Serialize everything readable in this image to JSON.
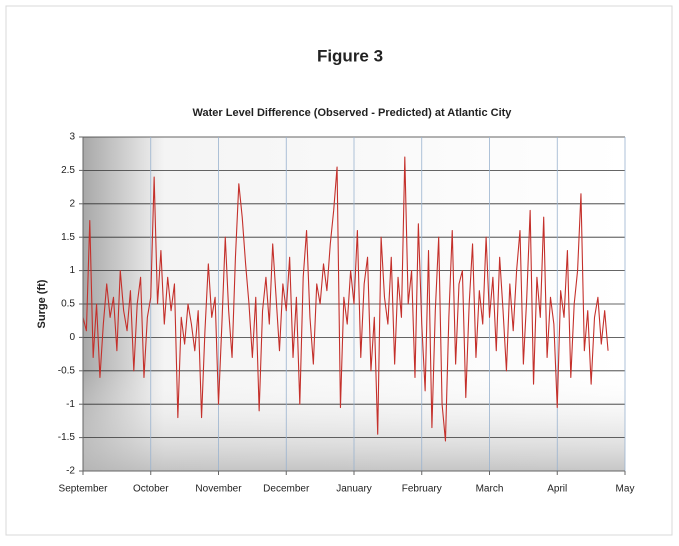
{
  "chart_data": {
    "type": "line",
    "heading": "Figure 3",
    "title": "Water Level Difference (Observed - Predicted) at Atlantic City",
    "y_label": "Surge (ft)",
    "grid": true,
    "xlim": [
      0,
      8
    ],
    "ylim": [
      -2,
      3
    ],
    "xticks": [
      {
        "value": 0,
        "label": "September"
      },
      {
        "value": 1,
        "label": "October"
      },
      {
        "value": 2,
        "label": "November"
      },
      {
        "value": 3,
        "label": "December"
      },
      {
        "value": 4,
        "label": "January"
      },
      {
        "value": 5,
        "label": "February"
      },
      {
        "value": 6,
        "label": "March"
      },
      {
        "value": 7,
        "label": "April"
      },
      {
        "value": 8,
        "label": "May"
      }
    ],
    "yticks": [
      -2,
      -1.5,
      -1,
      -0.5,
      0,
      0.5,
      1,
      1.5,
      2,
      2.5,
      3
    ],
    "x": [
      0,
      0.05,
      0.1,
      0.15,
      0.2,
      0.25,
      0.3,
      0.35,
      0.4,
      0.45,
      0.5,
      0.55,
      0.6,
      0.65,
      0.7,
      0.75,
      0.8,
      0.85,
      0.9,
      0.95,
      1,
      1.05,
      1.1,
      1.15,
      1.2,
      1.25,
      1.3,
      1.35,
      1.4,
      1.45,
      1.5,
      1.55,
      1.6,
      1.65,
      1.7,
      1.75,
      1.8,
      1.85,
      1.9,
      1.95,
      2,
      2.05,
      2.1,
      2.15,
      2.2,
      2.25,
      2.3,
      2.35,
      2.4,
      2.45,
      2.5,
      2.55,
      2.6,
      2.65,
      2.7,
      2.75,
      2.8,
      2.85,
      2.9,
      2.95,
      3,
      3.05,
      3.1,
      3.15,
      3.2,
      3.25,
      3.3,
      3.35,
      3.4,
      3.45,
      3.5,
      3.55,
      3.6,
      3.65,
      3.7,
      3.75,
      3.8,
      3.85,
      3.9,
      3.95,
      4,
      4.05,
      4.1,
      4.15,
      4.2,
      4.25,
      4.3,
      4.35,
      4.4,
      4.45,
      4.5,
      4.55,
      4.6,
      4.65,
      4.7,
      4.75,
      4.8,
      4.85,
      4.9,
      4.95,
      5,
      5.05,
      5.1,
      5.15,
      5.2,
      5.25,
      5.3,
      5.35,
      5.4,
      5.45,
      5.5,
      5.55,
      5.6,
      5.65,
      5.7,
      5.75,
      5.8,
      5.85,
      5.9,
      5.95,
      6,
      6.05,
      6.1,
      6.15,
      6.2,
      6.25,
      6.3,
      6.35,
      6.4,
      6.45,
      6.5,
      6.55,
      6.6,
      6.65,
      6.7,
      6.75,
      6.8,
      6.85,
      6.9,
      6.95,
      7,
      7.05,
      7.1,
      7.15,
      7.2,
      7.25,
      7.3,
      7.35,
      7.4,
      7.45,
      7.5,
      7.55,
      7.6,
      7.65,
      7.7,
      7.75
    ],
    "series": [
      {
        "name": "Surge",
        "color": "#c4302b",
        "values": [
          0.3,
          0.1,
          1.75,
          -0.3,
          0.5,
          -0.6,
          0.2,
          0.8,
          0.3,
          0.6,
          -0.2,
          1.0,
          0.4,
          0.1,
          0.7,
          -0.5,
          0.5,
          0.9,
          -0.6,
          0.3,
          0.6,
          2.4,
          0.5,
          1.3,
          0.2,
          0.9,
          0.4,
          0.8,
          -1.2,
          0.3,
          -0.1,
          0.5,
          0.2,
          -0.2,
          0.4,
          -1.2,
          0.1,
          1.1,
          0.3,
          0.6,
          -1.0,
          0.2,
          1.5,
          0.4,
          -0.3,
          1.2,
          2.3,
          1.8,
          1.1,
          0.5,
          -0.3,
          0.6,
          -1.1,
          0.4,
          0.9,
          0.2,
          1.4,
          0.6,
          -0.2,
          0.8,
          0.4,
          1.2,
          -0.3,
          0.6,
          -1.0,
          0.9,
          1.6,
          0.3,
          -0.4,
          0.8,
          0.5,
          1.1,
          0.7,
          1.4,
          1.9,
          2.55,
          -1.05,
          0.6,
          0.2,
          1.0,
          0.5,
          1.6,
          -0.3,
          0.8,
          1.2,
          -0.5,
          0.3,
          -1.45,
          1.5,
          0.6,
          0.2,
          1.2,
          -0.4,
          0.9,
          0.3,
          2.7,
          0.5,
          1.0,
          -0.6,
          1.7,
          0.2,
          -0.8,
          1.3,
          -1.35,
          0.4,
          1.5,
          -1.0,
          -1.55,
          0.3,
          1.6,
          -0.4,
          0.8,
          1.0,
          -0.9,
          0.5,
          1.4,
          -0.3,
          0.7,
          0.2,
          1.5,
          0.3,
          0.9,
          -0.2,
          1.2,
          0.4,
          -0.5,
          0.8,
          0.1,
          1.0,
          1.6,
          -0.4,
          0.6,
          1.9,
          -0.7,
          0.9,
          0.3,
          1.8,
          -0.3,
          0.6,
          0.2,
          -1.05,
          0.7,
          0.3,
          1.3,
          -0.6,
          0.5,
          1.0,
          2.15,
          -0.2,
          0.4,
          -0.7,
          0.3,
          0.6,
          -0.1,
          0.4,
          -0.2
        ]
      }
    ]
  }
}
